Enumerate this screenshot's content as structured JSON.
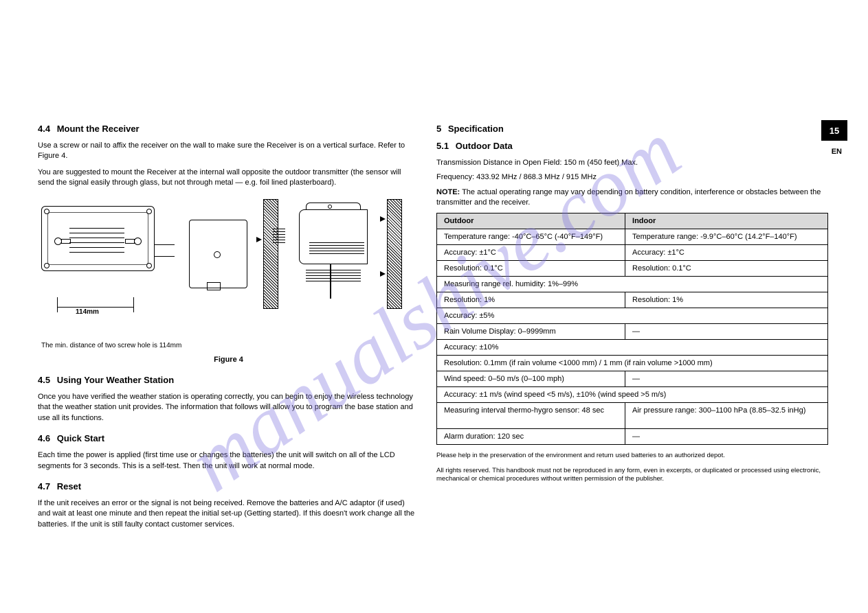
{
  "page_number": "15",
  "lang": "EN",
  "watermark": "manualshive.com",
  "left": {
    "mount_title_num": "4.4",
    "mount_title": "Mount the Receiver",
    "mount_p1": "Use a screw or nail to affix the receiver on the wall to make sure the Receiver is on a vertical surface. Refer to Figure 4.",
    "mount_p2": "You are suggested to mount the Receiver at the internal wall opposite the outdoor transmitter (the sensor will send the signal easily through glass, but not through metal — e.g. foil lined plasterboard).",
    "dim_label": "114mm",
    "fig_note": "The min. distance of two screw hole is 114mm",
    "fig_caption": "Figure 4",
    "use_title_num": "4.5",
    "use_title": "Using Your Weather Station",
    "use_p": "Once you have verified the weather station is operating correctly, you can begin to enjoy the wireless technology that the weather station unit provides. The information that follows will allow you to program the base station and use all its functions.",
    "start_title_num": "4.6",
    "start_title": "Quick Start",
    "start_p": "Each time the power is applied (first time use or changes the batteries) the unit will switch on all of the LCD segments for 3 seconds. This is a self-test. Then the unit will work at normal mode.",
    "reset_title_num": "4.7",
    "reset_title": "Reset",
    "reset_p": "If the unit receives an error or the signal is not being received. Remove the batteries and A/C adaptor (if used) and wait at least one minute and then repeat the initial set-up (Getting started). If this doesn't work change all the batteries. If the unit is still faulty contact customer services."
  },
  "right": {
    "spec_title_num": "5",
    "spec_title": "Specification",
    "out_title_num": "5.1",
    "out_title": "Outdoor Data",
    "trans_label": "Transmission Distance in Open Field:",
    "trans_val": "150 m (450 feet) Max.",
    "freq_label": "Frequency:",
    "freq_val": "433.92 MHz / 868.3 MHz / 915 MHz",
    "note_label": "NOTE:",
    "note_text": " The actual operating range may vary depending on battery condition, interference or obstacles between the transmitter and the receiver.",
    "table": {
      "headers": [
        "Outdoor",
        "Indoor"
      ],
      "rows": [
        [
          "Temperature range: -40°C–65°C (-40°F–149°F)",
          "Temperature range: -9.9°C–60°C (14.2°F–140°F)"
        ],
        [
          "Accuracy: ±1°C",
          "Accuracy: ±1°C"
        ],
        [
          "Resolution: 0.1°C",
          "Resolution: 0.1°C"
        ],
        [
          "Measuring range rel. humidity: 1%–99%"
        ],
        [
          "Resolution: 1%",
          "Resolution: 1%"
        ],
        [
          "Accuracy: ±5%"
        ],
        [
          "Rain Volume Display: 0–9999mm",
          "—"
        ],
        [
          "Accuracy: ±10%"
        ],
        [
          "Resolution: 0.1mm (if rain volume <1000 mm) / 1 mm (if rain volume >1000 mm)"
        ],
        [
          "Wind speed: 0–50 m/s (0–100 mph)",
          "—"
        ],
        [
          "Accuracy: ±1 m/s (wind speed <5 m/s), ±10% (wind speed >5 m/s)"
        ],
        [
          "Measuring interval thermo-hygro sensor: 48 sec",
          "Air pressure range: 300–1100 hPa (8.85–32.5 inHg)"
        ],
        [
          "Alarm duration: 120 sec",
          "—"
        ]
      ]
    },
    "footer1": "Please help in the preservation of the environment and return used batteries to an authorized depot.",
    "footer2": "All rights reserved. This handbook must not be reproduced in any form, even in excerpts, or duplicated or processed using electronic, mechanical or chemical procedures without written permission of the publisher."
  },
  "colors": {
    "watermark": "rgba(120,110,220,0.35)",
    "table_header_bg": "#d9d9d9",
    "page_box_bg": "#000000",
    "page_box_fg": "#ffffff",
    "border": "#000000"
  }
}
